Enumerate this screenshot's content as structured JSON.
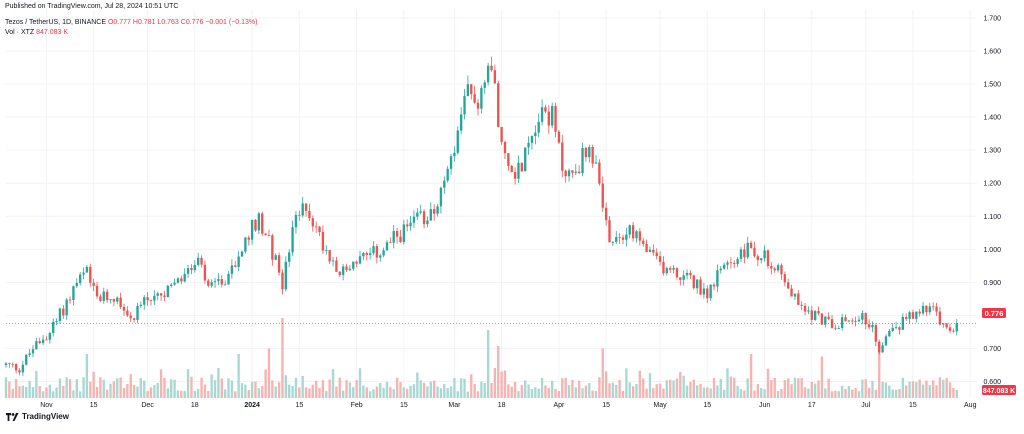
{
  "header": {
    "published": "Published on TradingView.com, Jul 28, 2024 10:51 UTC",
    "symbol_line": "Tezos / TetherUS, 1D, BINANCE",
    "ohlc": "O0.777 H0.781 L0.763 C0.776 −0.001 (−0.13%)",
    "vol_label": "Vol · XTZ",
    "vol_value": "847.083 K"
  },
  "brand": {
    "name": "TradingView",
    "icon": "tradingview-logo-icon"
  },
  "colors": {
    "up": "#26a69a",
    "down": "#ef5350",
    "vol_up": "#a8d8d2",
    "vol_down": "#f5b3b1",
    "last_price": "#f23645"
  },
  "chart_data": {
    "type": "candlestick",
    "x_range": [
      "2023-10-20",
      "2024-08-03"
    ],
    "ylim": [
      0.55,
      1.7
    ],
    "y_ticks": [
      "1.700",
      "1.600",
      "1.500",
      "1.400",
      "1.300",
      "1.200",
      "1.100",
      "1.000",
      "0.900",
      "0.800",
      "0.700",
      "0.600"
    ],
    "x_ticks": [
      {
        "date": "2023-11-01",
        "label": "Nov",
        "bold": false
      },
      {
        "date": "2023-11-15",
        "label": "15",
        "bold": false
      },
      {
        "date": "2023-12-01",
        "label": "Dec",
        "bold": false
      },
      {
        "date": "2023-12-15",
        "label": "18",
        "bold": false
      },
      {
        "date": "2024-01-01",
        "label": "2024",
        "bold": true
      },
      {
        "date": "2024-01-15",
        "label": "15",
        "bold": false
      },
      {
        "date": "2024-02-01",
        "label": "Feb",
        "bold": false
      },
      {
        "date": "2024-02-15",
        "label": "15",
        "bold": false
      },
      {
        "date": "2024-03-01",
        "label": "Mar",
        "bold": false
      },
      {
        "date": "2024-03-15",
        "label": "18",
        "bold": false
      },
      {
        "date": "2024-04-01",
        "label": "Apr",
        "bold": false
      },
      {
        "date": "2024-04-15",
        "label": "15",
        "bold": false
      },
      {
        "date": "2024-05-01",
        "label": "May",
        "bold": false
      },
      {
        "date": "2024-05-15",
        "label": "15",
        "bold": false
      },
      {
        "date": "2024-06-01",
        "label": "Jun",
        "bold": false
      },
      {
        "date": "2024-06-15",
        "label": "17",
        "bold": false
      },
      {
        "date": "2024-07-01",
        "label": "Jul",
        "bold": false
      },
      {
        "date": "2024-07-15",
        "label": "15",
        "bold": false
      },
      {
        "date": "2024-08-01",
        "label": "Aug",
        "bold": false
      }
    ],
    "last_price": 0.776,
    "last_price_label": "0.776",
    "last_volume_label": "847.083 K",
    "close_path": [
      [
        "2023-10-20",
        0.65
      ],
      [
        "2023-10-24",
        0.64
      ],
      [
        "2023-10-28",
        0.7
      ],
      [
        "2023-11-02",
        0.75
      ],
      [
        "2023-11-06",
        0.82
      ],
      [
        "2023-11-10",
        0.9
      ],
      [
        "2023-11-13",
        0.93
      ],
      [
        "2023-11-17",
        0.85
      ],
      [
        "2023-11-22",
        0.86
      ],
      [
        "2023-11-26",
        0.79
      ],
      [
        "2023-11-30",
        0.85
      ],
      [
        "2023-12-04",
        0.85
      ],
      [
        "2023-12-08",
        0.88
      ],
      [
        "2023-12-12",
        0.92
      ],
      [
        "2023-12-16",
        0.96
      ],
      [
        "2023-12-19",
        0.88
      ],
      [
        "2023-12-23",
        0.9
      ],
      [
        "2023-12-27",
        0.96
      ],
      [
        "2023-12-31",
        1.05
      ],
      [
        "2024-01-03",
        1.1
      ],
      [
        "2024-01-06",
        1.02
      ],
      [
        "2024-01-10",
        0.9
      ],
      [
        "2024-01-13",
        1.05
      ],
      [
        "2024-01-16",
        1.16
      ],
      [
        "2024-01-20",
        1.06
      ],
      [
        "2024-01-24",
        0.98
      ],
      [
        "2024-01-28",
        0.93
      ],
      [
        "2024-02-01",
        0.97
      ],
      [
        "2024-02-05",
        0.98
      ],
      [
        "2024-02-09",
        1.0
      ],
      [
        "2024-02-13",
        1.04
      ],
      [
        "2024-02-17",
        1.07
      ],
      [
        "2024-02-21",
        1.1
      ],
      [
        "2024-02-25",
        1.14
      ],
      [
        "2024-02-28",
        1.22
      ],
      [
        "2024-03-02",
        1.35
      ],
      [
        "2024-03-05",
        1.48
      ],
      [
        "2024-03-08",
        1.45
      ],
      [
        "2024-03-11",
        1.57
      ],
      [
        "2024-03-13",
        1.5
      ],
      [
        "2024-03-15",
        1.3
      ],
      [
        "2024-03-18",
        1.22
      ],
      [
        "2024-03-21",
        1.26
      ],
      [
        "2024-03-24",
        1.36
      ],
      [
        "2024-03-27",
        1.42
      ],
      [
        "2024-03-30",
        1.4
      ],
      [
        "2024-04-02",
        1.25
      ],
      [
        "2024-04-05",
        1.22
      ],
      [
        "2024-04-09",
        1.3
      ],
      [
        "2024-04-12",
        1.28
      ],
      [
        "2024-04-14",
        1.1
      ],
      [
        "2024-04-17",
        1.0
      ],
      [
        "2024-04-21",
        1.06
      ],
      [
        "2024-04-25",
        1.02
      ],
      [
        "2024-04-29",
        0.97
      ],
      [
        "2024-05-03",
        0.94
      ],
      [
        "2024-05-07",
        0.92
      ],
      [
        "2024-05-11",
        0.9
      ],
      [
        "2024-05-15",
        0.87
      ],
      [
        "2024-05-19",
        0.93
      ],
      [
        "2024-05-23",
        0.97
      ],
      [
        "2024-05-27",
        1.0
      ],
      [
        "2024-05-31",
        0.98
      ],
      [
        "2024-06-04",
        0.96
      ],
      [
        "2024-06-08",
        0.88
      ],
      [
        "2024-06-12",
        0.82
      ],
      [
        "2024-06-16",
        0.8
      ],
      [
        "2024-06-20",
        0.78
      ],
      [
        "2024-06-24",
        0.78
      ],
      [
        "2024-06-28",
        0.8
      ],
      [
        "2024-07-02",
        0.78
      ],
      [
        "2024-07-05",
        0.7
      ],
      [
        "2024-07-08",
        0.75
      ],
      [
        "2024-07-12",
        0.78
      ],
      [
        "2024-07-16",
        0.8
      ],
      [
        "2024-07-19",
        0.83
      ],
      [
        "2024-07-22",
        0.8
      ],
      [
        "2024-07-25",
        0.75
      ],
      [
        "2024-07-28",
        0.776
      ]
    ],
    "volume_spikes": [
      {
        "date": "2023-11-13",
        "rel": 0.55
      },
      {
        "date": "2023-12-28",
        "rel": 0.55
      },
      {
        "date": "2024-01-06",
        "rel": 0.62
      },
      {
        "date": "2024-01-10",
        "rel": 1.0
      },
      {
        "date": "2024-03-11",
        "rel": 0.85
      },
      {
        "date": "2024-03-14",
        "rel": 0.65
      },
      {
        "date": "2024-04-14",
        "rel": 0.62
      },
      {
        "date": "2024-05-28",
        "rel": 0.55
      },
      {
        "date": "2024-06-18",
        "rel": 0.52
      },
      {
        "date": "2024-07-05",
        "rel": 0.65
      }
    ]
  }
}
